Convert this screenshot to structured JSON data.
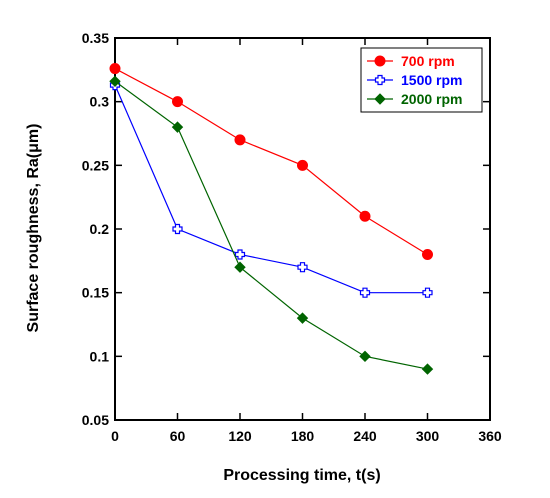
{
  "chart_data": {
    "type": "line",
    "xlabel": "Processing time, t(s)",
    "ylabel": "Surface roughness, Ra(μm)",
    "xlim": [
      0,
      360
    ],
    "ylim": [
      0.05,
      0.35
    ],
    "xticks": [
      "0",
      "60",
      "120",
      "180",
      "240",
      "300",
      "360"
    ],
    "yticks": [
      "0.05",
      "0.1",
      "0.15",
      "0.2",
      "0.25",
      "0.3",
      "0.35"
    ],
    "xtick_values": [
      0,
      60,
      120,
      180,
      240,
      300,
      360
    ],
    "ytick_values": [
      0.05,
      0.1,
      0.15,
      0.2,
      0.25,
      0.3,
      0.35
    ],
    "grid": false,
    "legend_position": "top-right",
    "series": [
      {
        "name": "700 rpm",
        "color": "#ff0000",
        "marker": "circle",
        "x": [
          0,
          60,
          120,
          180,
          240,
          300
        ],
        "y": [
          0.326,
          0.3,
          0.27,
          0.25,
          0.21,
          0.18
        ]
      },
      {
        "name": "1500 rpm",
        "color": "#0000ff",
        "marker": "open-plus",
        "x": [
          0,
          60,
          120,
          180,
          240,
          300
        ],
        "y": [
          0.313,
          0.2,
          0.18,
          0.17,
          0.15,
          0.15
        ]
      },
      {
        "name": "2000 rpm",
        "color": "#006400",
        "marker": "diamond",
        "x": [
          0,
          60,
          120,
          180,
          240,
          300
        ],
        "y": [
          0.316,
          0.28,
          0.17,
          0.13,
          0.1,
          0.09
        ]
      }
    ]
  }
}
